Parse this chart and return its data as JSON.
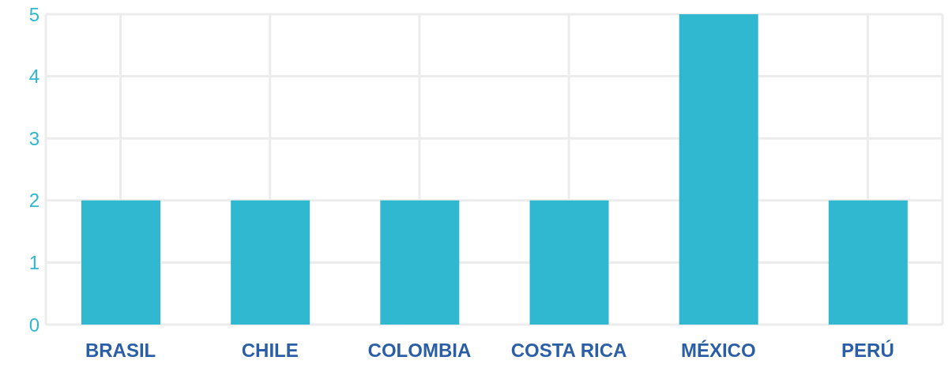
{
  "chart_data": {
    "type": "bar",
    "categories": [
      "BRASIL",
      "CHILE",
      "COLOMBIA",
      "COSTA RICA",
      "MÉXICO",
      "PERÚ"
    ],
    "values": [
      2,
      2,
      2,
      2,
      5,
      2
    ],
    "color": "#2fb8cf",
    "ylim": [
      0,
      5
    ],
    "yticks": [
      0,
      1,
      2,
      3,
      4,
      5
    ],
    "grid": true
  }
}
